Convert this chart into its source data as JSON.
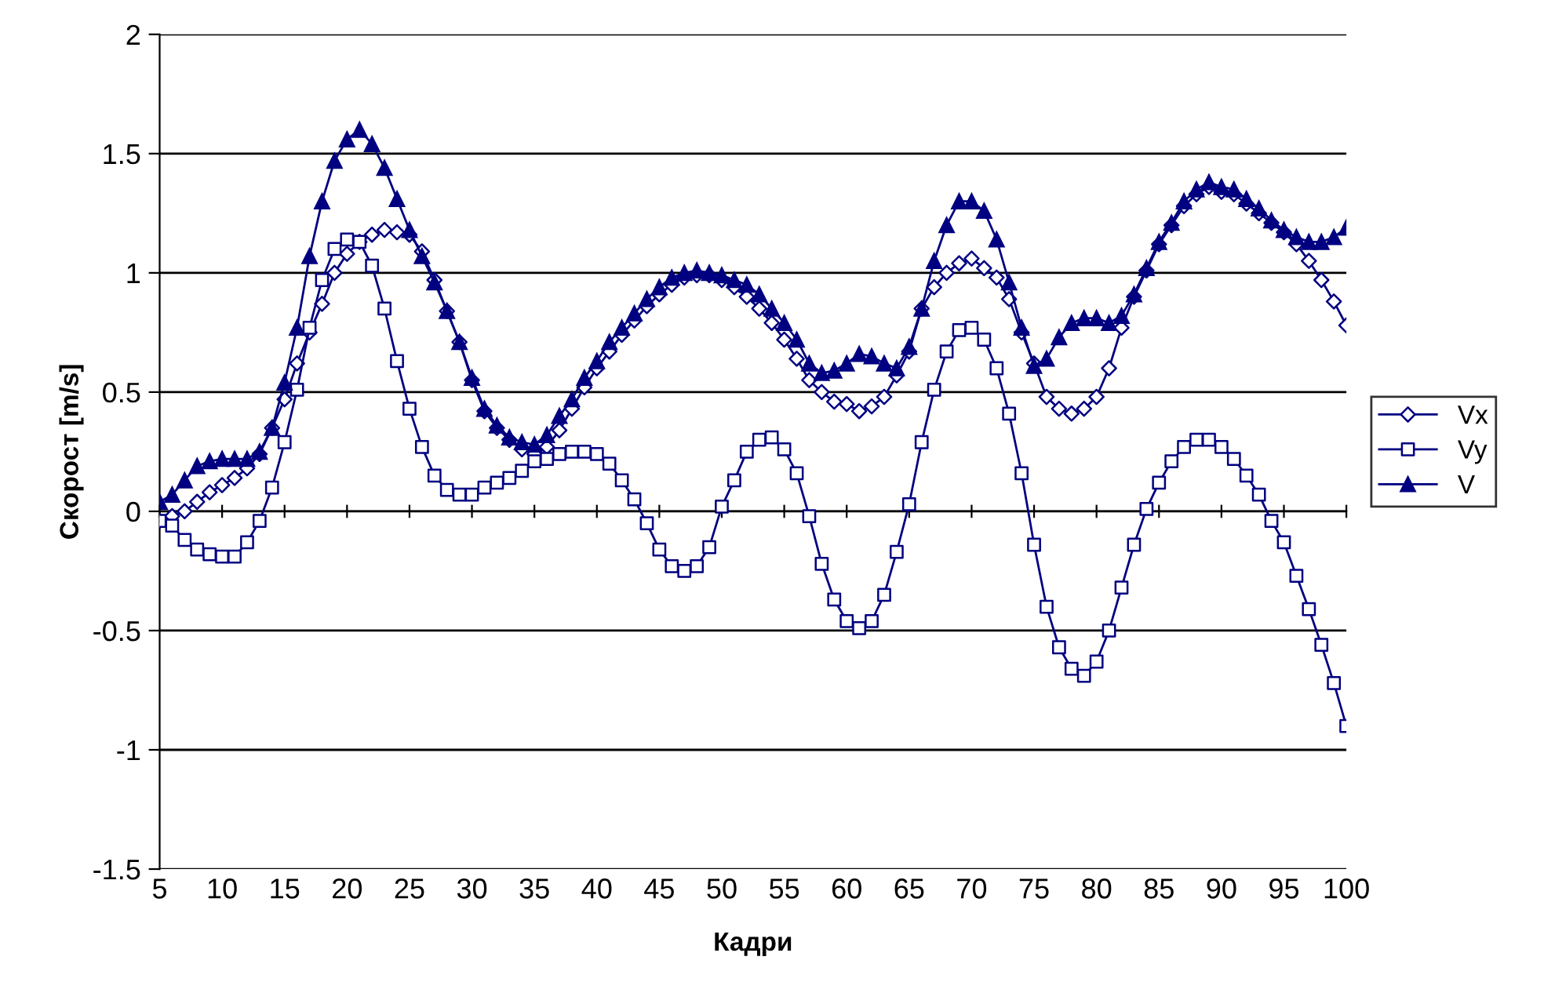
{
  "chart_data": {
    "type": "line",
    "xlabel": "Кадри",
    "ylabel": "Скорост [m/s]",
    "categories": [
      "5",
      null,
      null,
      null,
      null,
      "10",
      null,
      null,
      null,
      null,
      "15",
      null,
      null,
      null,
      null,
      "20",
      null,
      null,
      null,
      null,
      "25",
      null,
      null,
      null,
      null,
      "30",
      null,
      null,
      null,
      null,
      "35",
      null,
      null,
      null,
      null,
      "40",
      null,
      null,
      null,
      null,
      "45",
      null,
      null,
      null,
      null,
      "50",
      null,
      null,
      null,
      null,
      "55",
      null,
      null,
      null,
      null,
      "60",
      null,
      null,
      null,
      null,
      "65",
      null,
      null,
      null,
      null,
      "70",
      null,
      null,
      null,
      null,
      "75",
      null,
      null,
      null,
      null,
      "80",
      null,
      null,
      null,
      null,
      "85",
      null,
      null,
      null,
      null,
      "90",
      null,
      null,
      null,
      null,
      "95",
      null,
      null,
      null,
      null,
      "100"
    ],
    "series": [
      {
        "name": "Vx",
        "color": "#000080",
        "marker": "diamond",
        "values": [
          -0.04,
          -0.02,
          0.0,
          0.04,
          0.08,
          0.11,
          0.14,
          0.18,
          0.24,
          0.35,
          0.47,
          0.62,
          0.75,
          0.87,
          1.0,
          1.08,
          1.13,
          1.16,
          1.18,
          1.17,
          1.16,
          1.09,
          0.97,
          0.84,
          0.71,
          0.55,
          0.42,
          0.35,
          0.3,
          0.26,
          0.24,
          0.27,
          0.34,
          0.43,
          0.52,
          0.6,
          0.67,
          0.74,
          0.8,
          0.86,
          0.91,
          0.95,
          0.98,
          0.99,
          0.99,
          0.97,
          0.94,
          0.9,
          0.85,
          0.79,
          0.72,
          0.64,
          0.55,
          0.5,
          0.46,
          0.45,
          0.42,
          0.44,
          0.48,
          0.57,
          0.67,
          0.85,
          0.94,
          1.0,
          1.04,
          1.06,
          1.02,
          0.98,
          0.89,
          0.75,
          0.62,
          0.48,
          0.43,
          0.41,
          0.43,
          0.48,
          0.6,
          0.77,
          0.9,
          1.01,
          1.12,
          1.2,
          1.28,
          1.33,
          1.36,
          1.34,
          1.33,
          1.29,
          1.25,
          1.21,
          1.17,
          1.12,
          1.05,
          0.97,
          0.88,
          0.78
        ]
      },
      {
        "name": "Vy",
        "color": "#000080",
        "marker": "square",
        "values": [
          -0.04,
          -0.06,
          -0.12,
          -0.16,
          -0.18,
          -0.19,
          -0.19,
          -0.13,
          -0.04,
          0.1,
          0.29,
          0.51,
          0.77,
          0.97,
          1.1,
          1.14,
          1.13,
          1.03,
          0.85,
          0.63,
          0.43,
          0.27,
          0.15,
          0.09,
          0.07,
          0.07,
          0.1,
          0.12,
          0.14,
          0.17,
          0.21,
          0.22,
          0.24,
          0.25,
          0.25,
          0.24,
          0.2,
          0.13,
          0.05,
          -0.05,
          -0.16,
          -0.23,
          -0.25,
          -0.23,
          -0.15,
          0.02,
          0.13,
          0.25,
          0.3,
          0.31,
          0.26,
          0.16,
          -0.02,
          -0.22,
          -0.37,
          -0.46,
          -0.49,
          -0.46,
          -0.35,
          -0.17,
          0.03,
          0.29,
          0.51,
          0.67,
          0.76,
          0.77,
          0.72,
          0.6,
          0.41,
          0.16,
          -0.14,
          -0.4,
          -0.57,
          -0.66,
          -0.69,
          -0.63,
          -0.5,
          -0.32,
          -0.14,
          0.01,
          0.12,
          0.21,
          0.27,
          0.3,
          0.3,
          0.27,
          0.22,
          0.15,
          0.07,
          -0.04,
          -0.13,
          -0.27,
          -0.41,
          -0.56,
          -0.72,
          -0.9
        ]
      },
      {
        "name": "V",
        "color": "#000080",
        "marker": "triangle",
        "values": [
          0.04,
          0.07,
          0.13,
          0.19,
          0.21,
          0.22,
          0.22,
          0.22,
          0.25,
          0.35,
          0.54,
          0.77,
          1.07,
          1.3,
          1.47,
          1.56,
          1.6,
          1.54,
          1.44,
          1.31,
          1.18,
          1.07,
          0.96,
          0.84,
          0.71,
          0.56,
          0.43,
          0.36,
          0.31,
          0.29,
          0.28,
          0.32,
          0.4,
          0.47,
          0.56,
          0.63,
          0.71,
          0.77,
          0.83,
          0.89,
          0.94,
          0.98,
          1.0,
          1.01,
          1.0,
          0.99,
          0.97,
          0.95,
          0.91,
          0.85,
          0.79,
          0.72,
          0.62,
          0.58,
          0.59,
          0.62,
          0.66,
          0.65,
          0.62,
          0.6,
          0.69,
          0.85,
          1.05,
          1.2,
          1.3,
          1.3,
          1.26,
          1.14,
          0.96,
          0.77,
          0.61,
          0.64,
          0.73,
          0.79,
          0.81,
          0.81,
          0.79,
          0.82,
          0.91,
          1.02,
          1.13,
          1.21,
          1.3,
          1.35,
          1.38,
          1.36,
          1.35,
          1.31,
          1.27,
          1.22,
          1.18,
          1.15,
          1.13,
          1.13,
          1.15,
          1.19
        ]
      }
    ],
    "ylim": [
      -1.5,
      2
    ],
    "yticks": [
      -1.5,
      -1,
      -0.5,
      0,
      0.5,
      1,
      1.5,
      2
    ],
    "grid": "y",
    "legend": "right",
    "line_style": "solid"
  }
}
